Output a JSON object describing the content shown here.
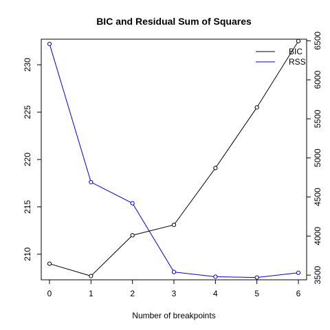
{
  "chart_data": {
    "type": "line",
    "title": "BIC and Residual Sum of Squares",
    "xlabel": "Number of breakpoints",
    "ylabel_left": "",
    "ylabel_right": "",
    "x": [
      0,
      1,
      2,
      3,
      4,
      5,
      6
    ],
    "x_ticks": [
      "0",
      "1",
      "2",
      "3",
      "4",
      "5",
      "6"
    ],
    "xlim": [
      0,
      6
    ],
    "y_left_ticks": [
      "210",
      "215",
      "220",
      "225",
      "230"
    ],
    "y_left_lim": [
      207.3,
      232.7
    ],
    "y_right_ticks": [
      "3500",
      "4000",
      "4500",
      "5000",
      "5500",
      "6000",
      "6500"
    ],
    "y_right_lim": [
      3440,
      6520
    ],
    "grid": false,
    "legend_position": "top-right",
    "series": [
      {
        "name": "BIC",
        "axis": "left",
        "color": "#000000",
        "values": [
          209.0,
          207.7,
          212.0,
          213.1,
          219.1,
          225.5,
          232.5
        ]
      },
      {
        "name": "RSS",
        "axis": "right",
        "color": "#0000cc",
        "values": [
          6460,
          4690,
          4420,
          3540,
          3480,
          3470,
          3530
        ]
      }
    ]
  }
}
